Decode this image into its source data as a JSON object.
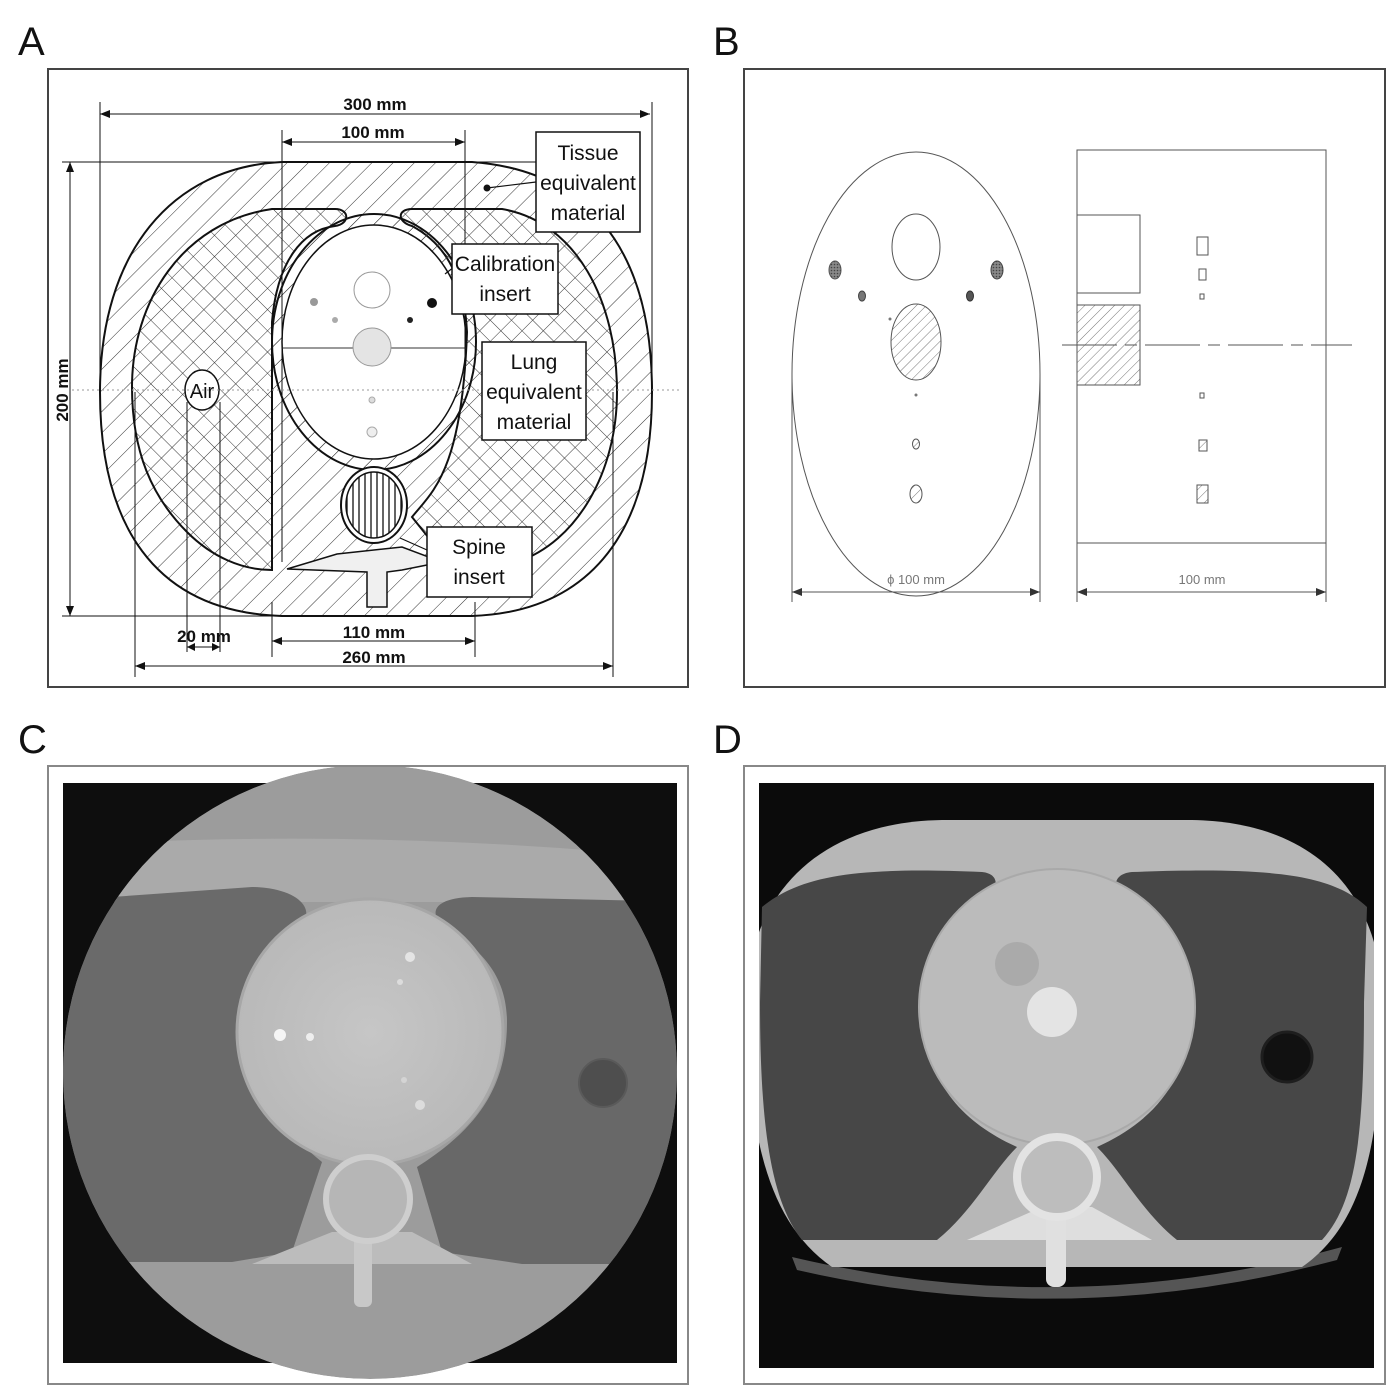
{
  "panels": {
    "a": {
      "letter": "A",
      "dims": {
        "width_total": "300 mm",
        "width_insert": "100 mm",
        "height": "200 mm",
        "air_dia": "20 mm",
        "spine_width": "110 mm",
        "inner_width": "260 mm"
      },
      "labels": {
        "tissue": [
          "Tissue",
          "equivalent",
          "material"
        ],
        "calibration": [
          "Calibration",
          "insert"
        ],
        "lung": [
          "Lung",
          "equivalent",
          "material"
        ],
        "spine": [
          "Spine",
          "insert"
        ],
        "air": "Air"
      }
    },
    "b": {
      "letter": "B",
      "dims": {
        "diameter": "ϕ 100 mm",
        "length": "100 mm"
      }
    },
    "c": {
      "letter": "C"
    },
    "d": {
      "letter": "D"
    }
  }
}
